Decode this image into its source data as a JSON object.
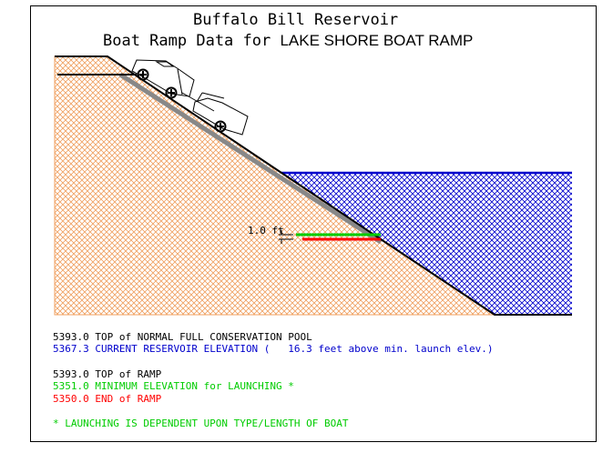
{
  "title": {
    "line1": "Buffalo Bill Reservoir",
    "line2_prefix": "Boat Ramp Data for ",
    "ramp_name": "LAKE SHORE BOAT RAMP"
  },
  "depth_label": "1.0 ft",
  "info_lines": [
    {
      "value": "5393.0",
      "text": "TOP of NORMAL FULL CONSERVATION POOL",
      "color": "#000000"
    },
    {
      "value": "5367.3",
      "text": "CURRENT RESERVOIR ELEVATION (   16.3 feet above min. launch elev.)",
      "color": "#0000cc"
    },
    {
      "value": "5393.0",
      "text": "TOP of RAMP",
      "color": "#000000"
    },
    {
      "value": "5351.0",
      "text": "MINIMUM ELEVATION for LAUNCHING *",
      "color": "#00cc00"
    },
    {
      "value": "5350.0",
      "text": "END of RAMP",
      "color": "#ff0000"
    }
  ],
  "footnote": "* LAUNCHING IS DEPENDENT UPON TYPE/LENGTH OF BOAT",
  "colors": {
    "ground": "#f0a060",
    "water": "#0000cc",
    "min_launch": "#00cc00",
    "end_ramp": "#ff0000",
    "ramp_surface": "#888888"
  }
}
